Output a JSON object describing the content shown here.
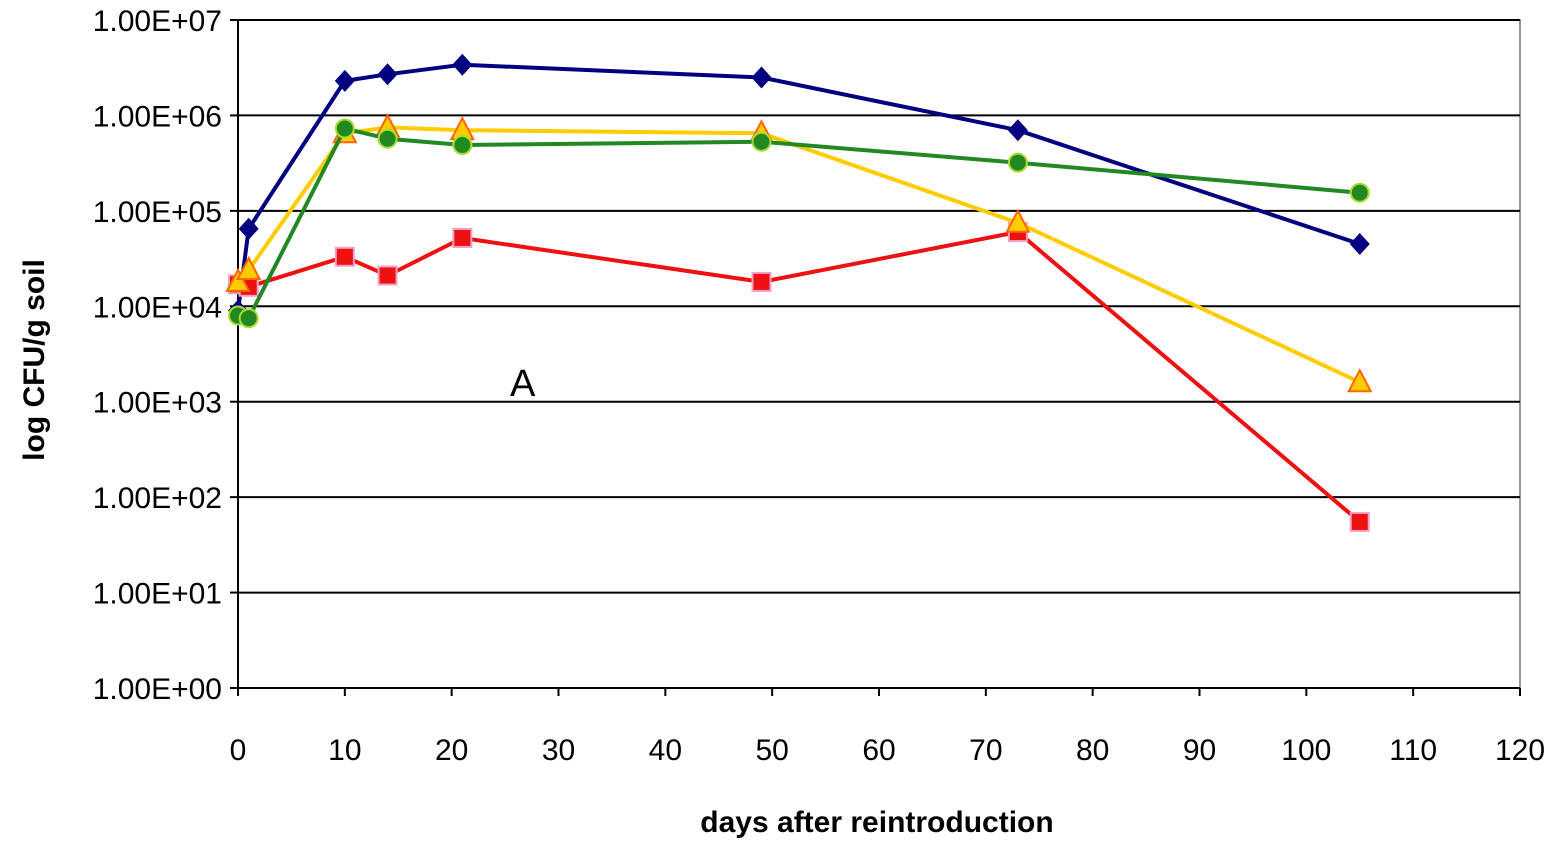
{
  "chart_data": {
    "type": "line",
    "title": "",
    "xlabel": "days after reintroduction",
    "ylabel": "log CFU/g soil",
    "xlim": [
      0,
      120
    ],
    "ylim": [
      1,
      10000000
    ],
    "y_scale": "log",
    "grid": {
      "horizontal": true,
      "vertical": false
    },
    "x_ticks": [
      "0",
      "10",
      "20",
      "30",
      "40",
      "50",
      "60",
      "70",
      "80",
      "90",
      "100",
      "110",
      "120"
    ],
    "y_ticks": [
      "1.00E+00",
      "1.00E+01",
      "1.00E+02",
      "1.00E+03",
      "1.00E+04",
      "1.00E+05",
      "1.00E+06",
      "1.00E+07"
    ],
    "annotation": "A",
    "series": [
      {
        "color": "#000080",
        "marker": "diamond",
        "points": [
          [
            0,
            9000
          ],
          [
            1,
            65000
          ],
          [
            10,
            2300000
          ],
          [
            14,
            2700000
          ],
          [
            21,
            3400000
          ],
          [
            49,
            2500000
          ],
          [
            73,
            700000
          ],
          [
            105,
            45000
          ]
        ]
      },
      {
        "color": "#ee1111",
        "marker": "square",
        "points": [
          [
            0,
            17000
          ],
          [
            1,
            16000
          ],
          [
            10,
            33000
          ],
          [
            14,
            21000
          ],
          [
            21,
            52000
          ],
          [
            49,
            18000
          ],
          [
            73,
            60000
          ],
          [
            105,
            55
          ]
        ]
      },
      {
        "color": "#ffcc00",
        "marker": "triangle",
        "points": [
          [
            0,
            18000
          ],
          [
            1,
            24000
          ],
          [
            10,
            650000
          ],
          [
            14,
            750000
          ],
          [
            21,
            700000
          ],
          [
            49,
            650000
          ],
          [
            73,
            75000
          ],
          [
            105,
            1600
          ]
        ]
      },
      {
        "color": "#228822",
        "marker": "circle",
        "points": [
          [
            0,
            8000
          ],
          [
            1,
            7500
          ],
          [
            10,
            730000
          ],
          [
            14,
            570000
          ],
          [
            21,
            490000
          ],
          [
            49,
            530000
          ],
          [
            73,
            320000
          ],
          [
            105,
            155000
          ]
        ]
      }
    ]
  }
}
